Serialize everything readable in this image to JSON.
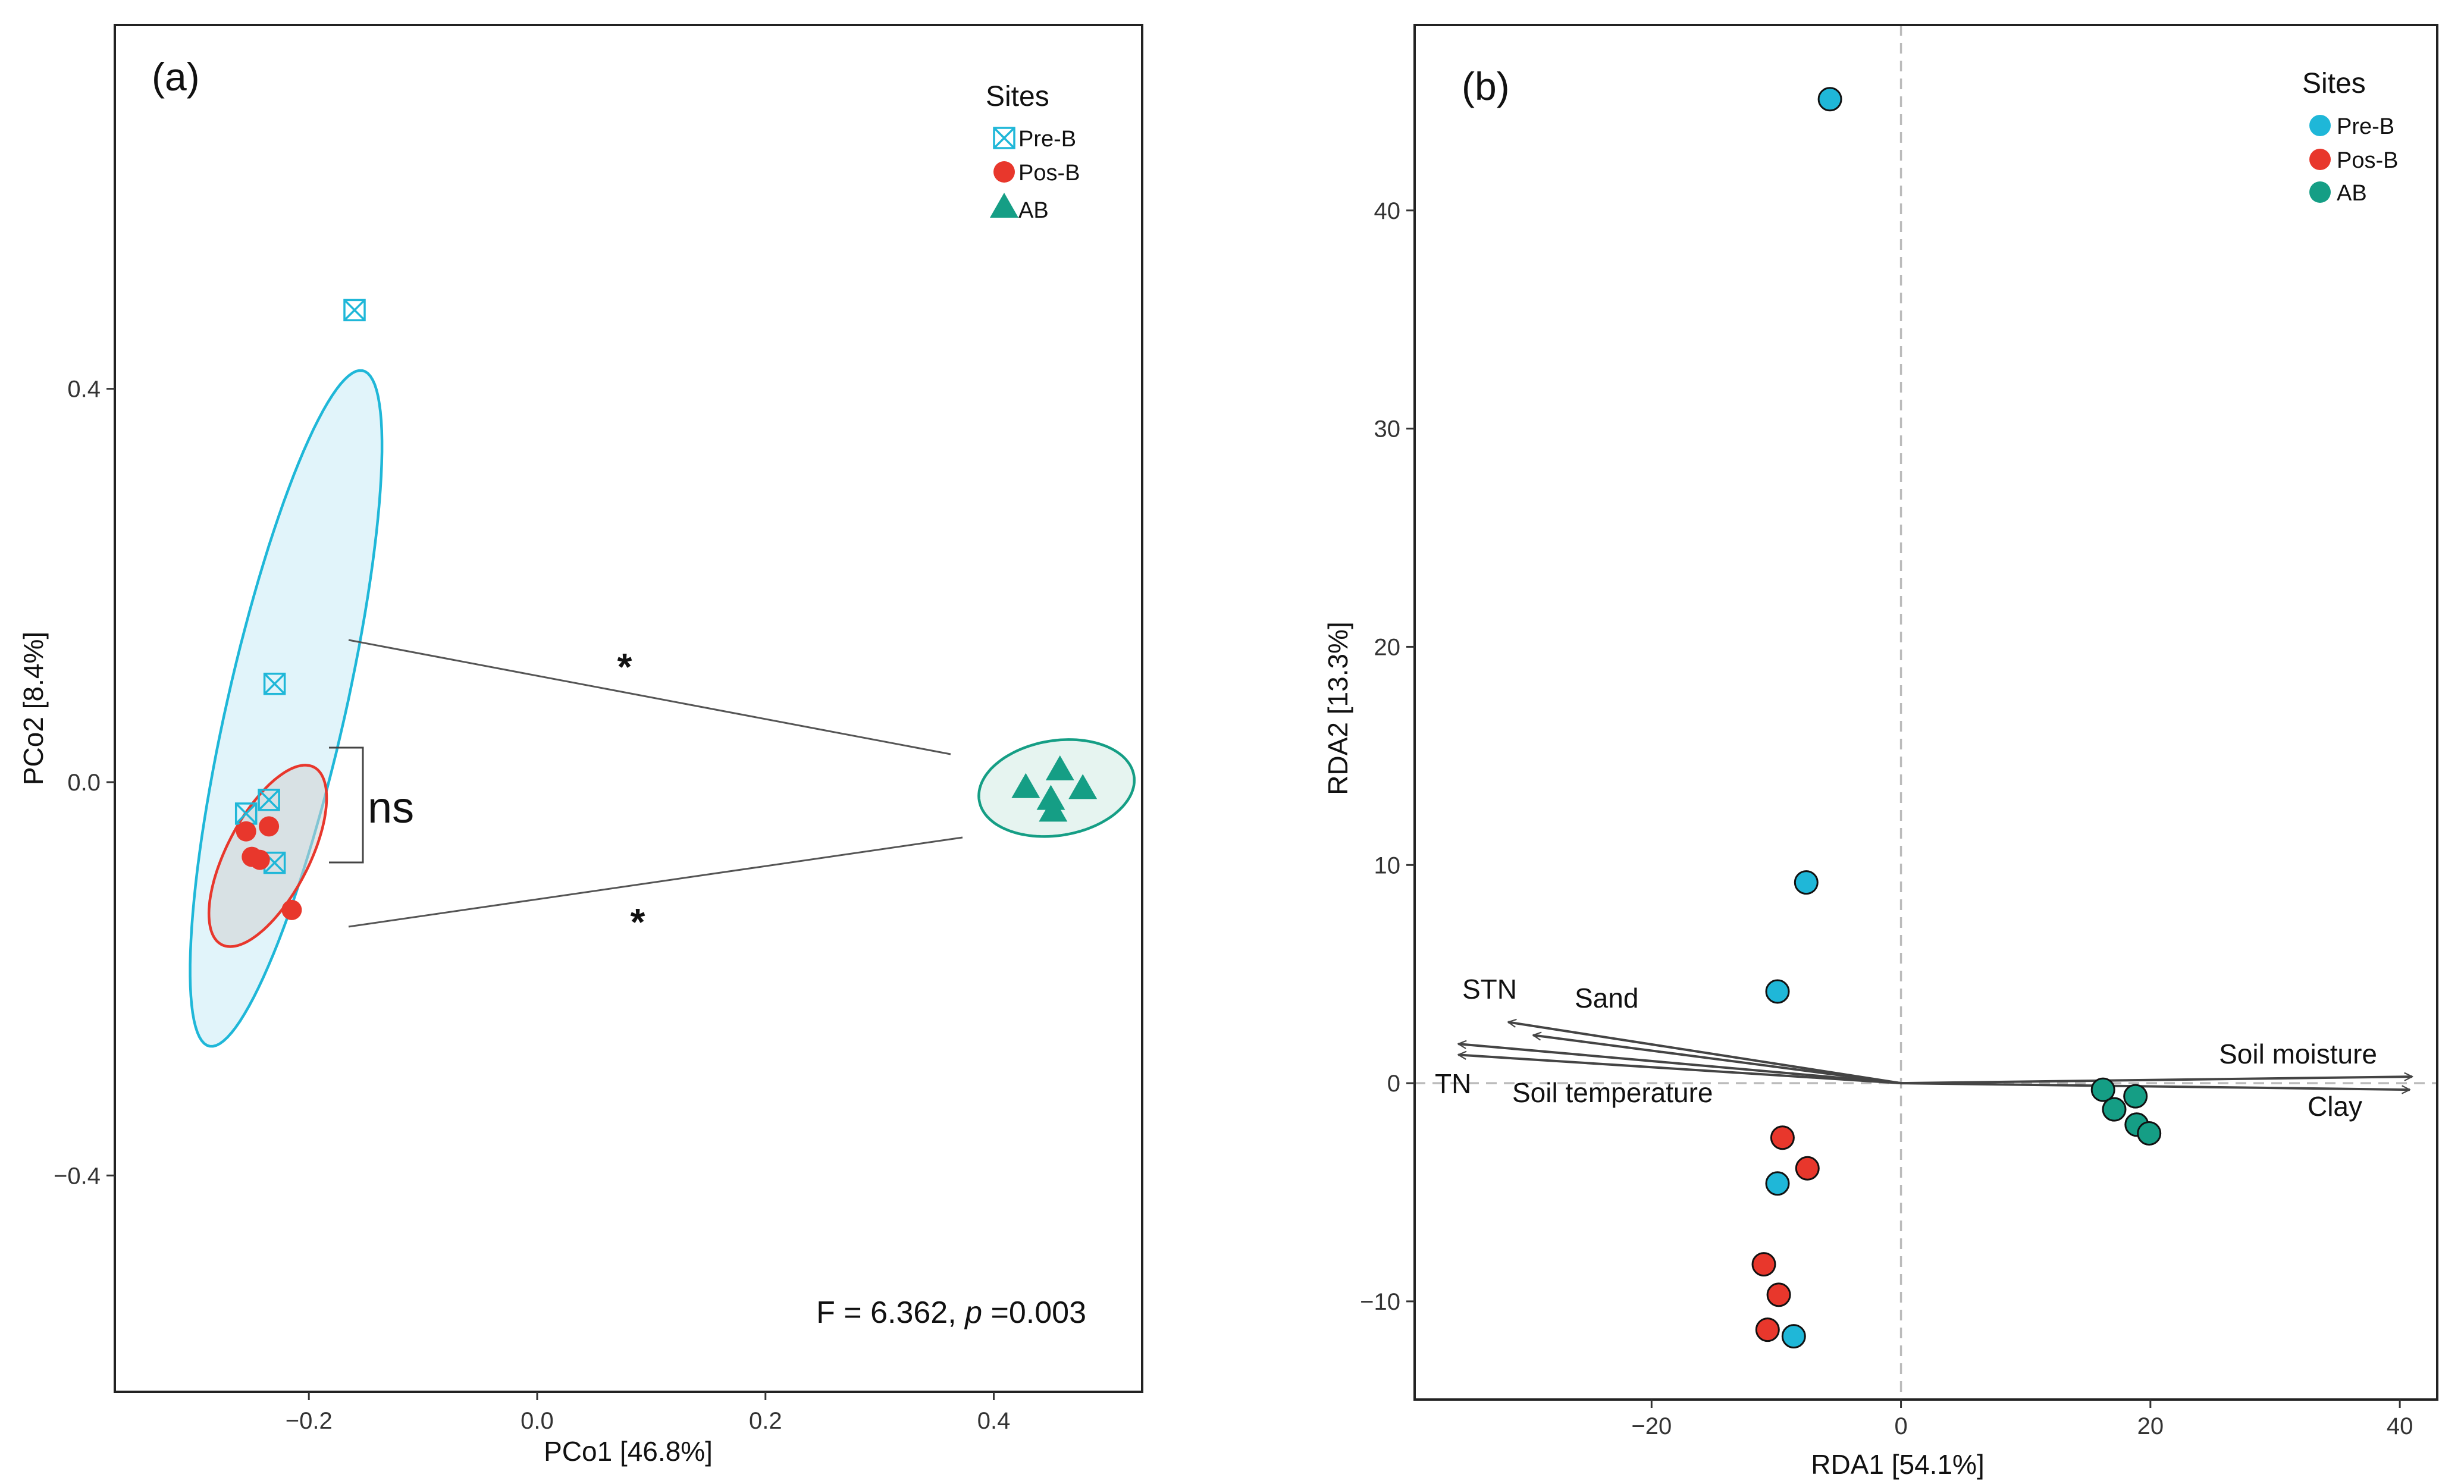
{
  "colors": {
    "pre_b": "#1fb7d8",
    "pre_b_fill": "#e1f4fa",
    "pos_b": "#e8372c",
    "ab": "#159e85",
    "ab_fill": "#e6f4f0",
    "frame": "#222222",
    "arrow": "#444444"
  },
  "chart_data": [
    {
      "type": "scatter",
      "panel_label": "(a)",
      "xlabel": "PCo1 [46.8%]",
      "ylabel": "PCo2 [8.4%]",
      "xlim": [
        -0.37,
        0.53
      ],
      "ylim": [
        -0.62,
        0.77
      ],
      "x_ticks": [
        -0.2,
        0.0,
        0.2,
        0.4
      ],
      "x_tick_labels": [
        "−0.2",
        "0.0",
        "0.2",
        "0.4"
      ],
      "y_ticks": [
        -0.4,
        0.0,
        0.4
      ],
      "y_tick_labels": [
        "−0.4",
        "0.0",
        "0.4"
      ],
      "legend": {
        "title": "Sites",
        "position": "top-right",
        "entries": [
          {
            "label": "Pre-B",
            "shape": "boxx"
          },
          {
            "label": "Pos-B",
            "shape": "circle"
          },
          {
            "label": "AB",
            "shape": "triangle"
          }
        ]
      },
      "series": [
        {
          "name": "Pre-B",
          "points": [
            [
              -0.16,
              0.48
            ],
            [
              -0.23,
              0.1
            ],
            [
              -0.235,
              -0.018
            ],
            [
              -0.255,
              -0.032
            ],
            [
              -0.23,
              -0.082
            ]
          ]
        },
        {
          "name": "Pos-B",
          "points": [
            [
              -0.255,
              -0.05
            ],
            [
              -0.235,
              -0.045
            ],
            [
              -0.25,
              -0.076
            ],
            [
              -0.243,
              -0.079
            ],
            [
              -0.215,
              -0.13
            ]
          ]
        },
        {
          "name": "AB",
          "points": [
            [
              0.458,
              0.012
            ],
            [
              0.428,
              -0.006
            ],
            [
              0.478,
              -0.007
            ],
            [
              0.45,
              -0.018
            ],
            [
              0.452,
              -0.03
            ]
          ]
        }
      ],
      "ellipses": [
        {
          "series": "Pre-B",
          "center": [
            -0.22,
            0.075
          ],
          "semi_axes": [
            0.35,
            0.052
          ],
          "angle_deg": 79
        },
        {
          "series": "Pos-B",
          "center": [
            -0.236,
            -0.075
          ],
          "semi_axes": [
            0.099,
            0.037
          ],
          "angle_deg": 67
        },
        {
          "series": "AB",
          "center": [
            0.455,
            -0.006
          ],
          "semi_axes": [
            0.069,
            0.048
          ],
          "angle_deg": 13
        }
      ],
      "annotations": {
        "stat": "F = 6.362, ",
        "stat_p": "p",
        "stat_tail": " =0.003",
        "ns": "ns",
        "star_top": "*",
        "star_bottom": "*"
      }
    },
    {
      "type": "scatter",
      "panel_label": "(b)",
      "xlabel": "RDA1 [54.1%]",
      "ylabel": "RDA2 [13.3%]",
      "xlim": [
        -39,
        43
      ],
      "ylim": [
        -14.5,
        48.5
      ],
      "x_ticks": [
        -20,
        0,
        20,
        40
      ],
      "x_tick_labels": [
        "−20",
        "0",
        "20",
        "40"
      ],
      "y_ticks": [
        -10,
        0,
        10,
        20,
        30,
        40
      ],
      "y_tick_labels": [
        "−10",
        "0",
        "10",
        "20",
        "30",
        "40"
      ],
      "reference_lines": {
        "x": 0,
        "y": 0
      },
      "legend": {
        "title": "Sites",
        "position": "top-right",
        "entries": [
          {
            "label": "Pre-B",
            "shape": "circle"
          },
          {
            "label": "Pos-B",
            "shape": "circle"
          },
          {
            "label": "AB",
            "shape": "circle"
          }
        ]
      },
      "series": [
        {
          "name": "Pre-B",
          "points": [
            [
              -5.7,
              45.1
            ],
            [
              -7.6,
              9.2
            ],
            [
              -9.9,
              4.2
            ],
            [
              -9.9,
              -4.6
            ],
            [
              -8.6,
              -11.6
            ]
          ]
        },
        {
          "name": "Pos-B",
          "points": [
            [
              -9.5,
              -2.5
            ],
            [
              -7.5,
              -3.9
            ],
            [
              -11.0,
              -8.3
            ],
            [
              -9.8,
              -9.7
            ],
            [
              -10.7,
              -11.3
            ]
          ]
        },
        {
          "name": "AB",
          "points": [
            [
              16.2,
              -0.3
            ],
            [
              18.8,
              -0.6
            ],
            [
              17.1,
              -1.2
            ],
            [
              18.9,
              -1.9
            ],
            [
              19.9,
              -2.3
            ]
          ]
        }
      ],
      "vectors": [
        {
          "label": "STN",
          "end": [
            -31.5,
            2.8
          ]
        },
        {
          "label": "Sand",
          "end": [
            -29.5,
            2.2
          ]
        },
        {
          "label": "TN",
          "end": [
            -35.5,
            1.8
          ]
        },
        {
          "label": "Soil temperature",
          "end": [
            -35.5,
            1.3
          ]
        },
        {
          "label": "Soil moisture",
          "end": [
            41.0,
            0.3
          ]
        },
        {
          "label": "Clay",
          "end": [
            40.8,
            -0.3
          ]
        }
      ]
    }
  ]
}
